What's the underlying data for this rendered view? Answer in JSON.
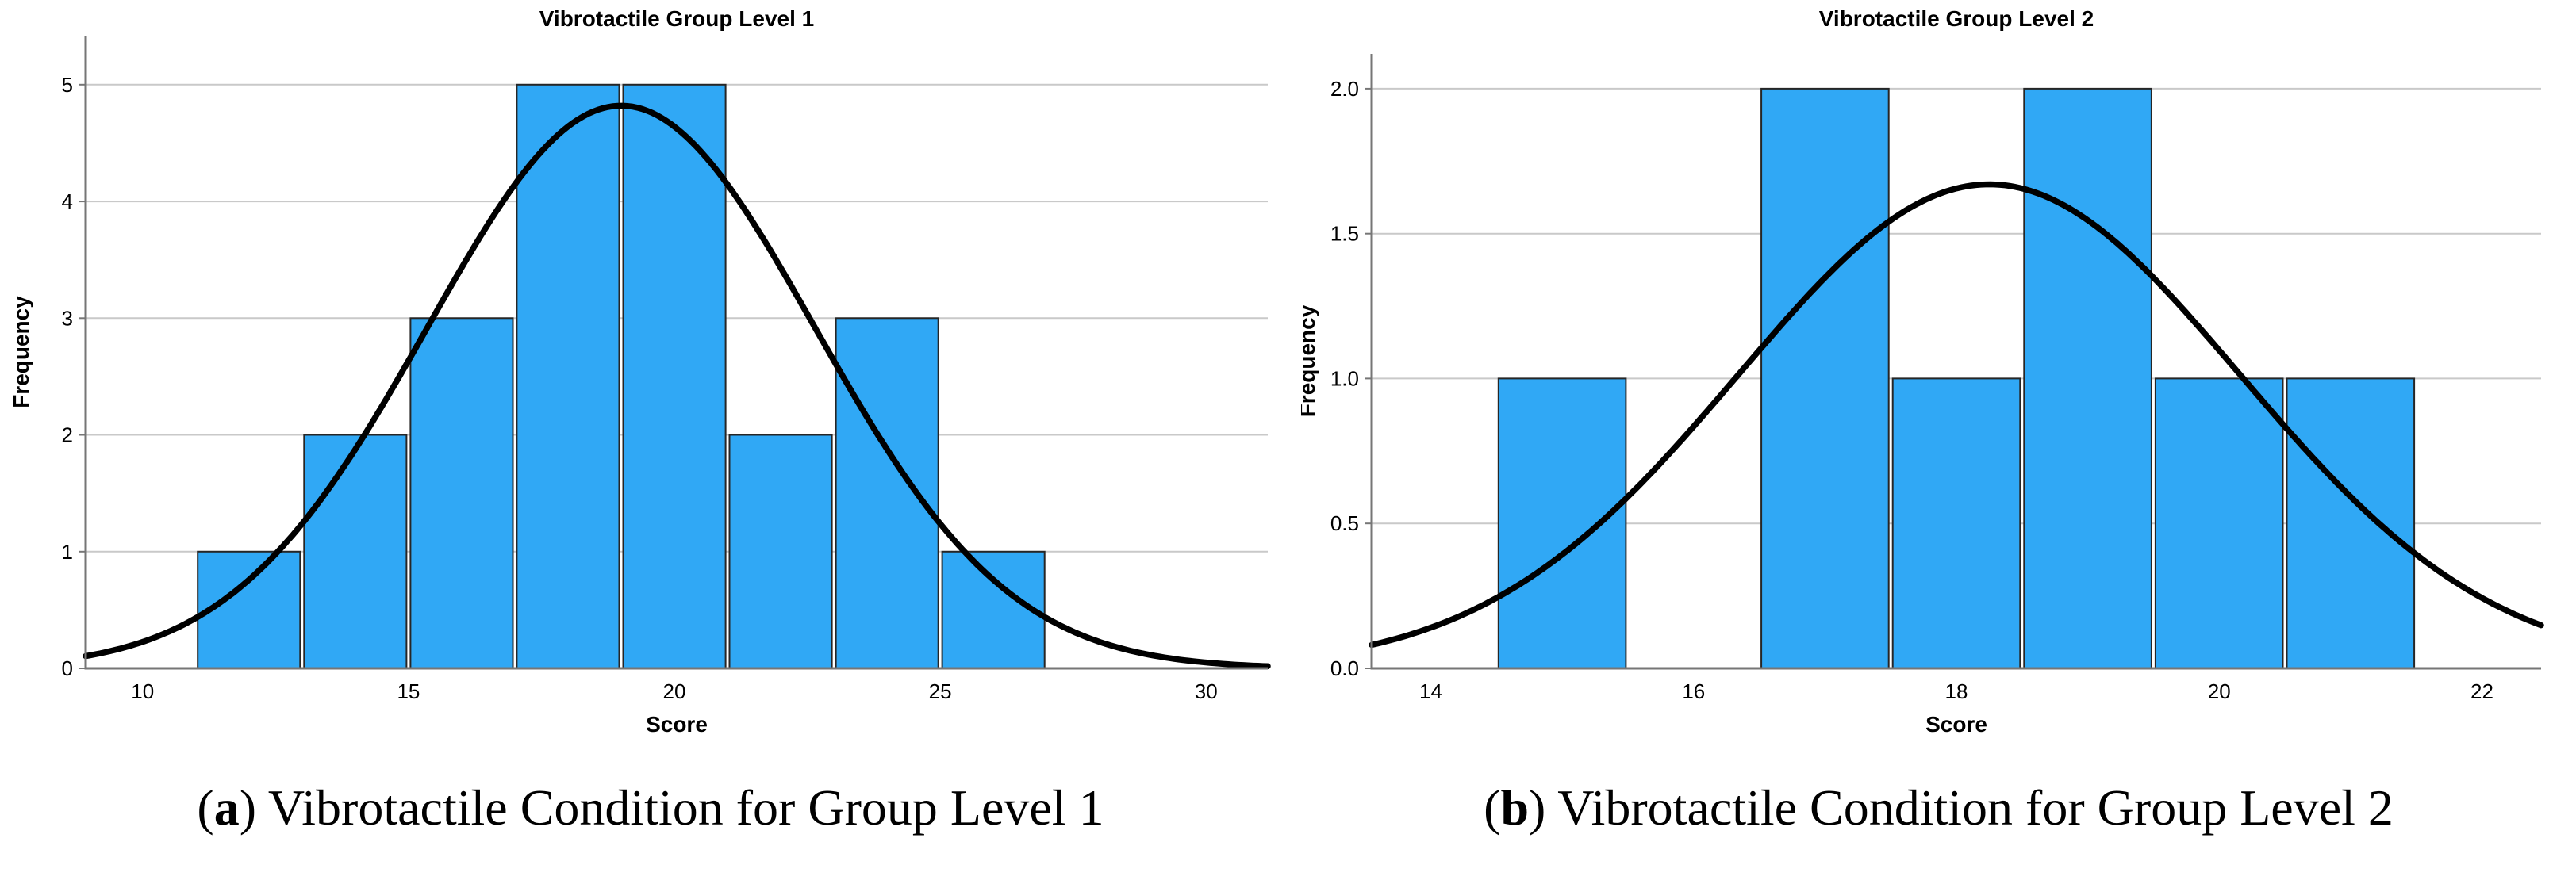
{
  "style": {
    "background": "#ffffff",
    "bar_fill": "#30A8F5",
    "bar_stroke": "#262626",
    "curve_color": "#000000",
    "gridline_color": "#c9c9c9",
    "spine_color": "#767676",
    "text_color": "#000000"
  },
  "chart_data": [
    {
      "type": "bar",
      "subtype": "histogram-with-normal-curve",
      "title": "Vibrotactile Group Level 1",
      "xlabel": "Score",
      "ylabel": "Frequency",
      "xlim": [
        8.93,
        31.16
      ],
      "ylim": [
        0,
        5.42
      ],
      "grid": true,
      "legend": "none",
      "xticks": [
        {
          "value": 10,
          "label": "10"
        },
        {
          "value": 15,
          "label": "15"
        },
        {
          "value": 20,
          "label": "20"
        },
        {
          "value": 25,
          "label": "25"
        },
        {
          "value": 30,
          "label": "30"
        }
      ],
      "yticks": [
        {
          "value": 0,
          "label": "0"
        },
        {
          "value": 1,
          "label": "1"
        },
        {
          "value": 2,
          "label": "2"
        },
        {
          "value": 3,
          "label": "3"
        },
        {
          "value": 4,
          "label": "4"
        },
        {
          "value": 5,
          "label": "5"
        }
      ],
      "bins": [
        {
          "x0": 11,
          "x1": 13,
          "frequency": 1
        },
        {
          "x0": 13,
          "x1": 15,
          "frequency": 2
        },
        {
          "x0": 15,
          "x1": 17,
          "frequency": 3
        },
        {
          "x0": 17,
          "x1": 19,
          "frequency": 5
        },
        {
          "x0": 19,
          "x1": 21,
          "frequency": 5
        },
        {
          "x0": 21,
          "x1": 23,
          "frequency": 2
        },
        {
          "x0": 23,
          "x1": 25,
          "frequency": 3
        },
        {
          "x0": 25,
          "x1": 27,
          "frequency": 1
        }
      ],
      "normal_curve": {
        "mean": 19.0,
        "sd": 3.64,
        "peak": 4.82
      }
    },
    {
      "type": "bar",
      "subtype": "histogram-with-normal-curve",
      "title": "Vibrotactile Group Level 2",
      "xlabel": "Score",
      "ylabel": "Frequency",
      "xlim": [
        13.55,
        22.45
      ],
      "ylim": [
        0,
        2.12
      ],
      "grid": true,
      "legend": "none",
      "xticks": [
        {
          "value": 14,
          "label": "14"
        },
        {
          "value": 16,
          "label": "16"
        },
        {
          "value": 18,
          "label": "18"
        },
        {
          "value": 20,
          "label": "20"
        },
        {
          "value": 22,
          "label": "22"
        }
      ],
      "yticks": [
        {
          "value": 0.0,
          "label": "0.0"
        },
        {
          "value": 0.5,
          "label": "0.5"
        },
        {
          "value": 1.0,
          "label": "1.0"
        },
        {
          "value": 1.5,
          "label": "1.5"
        },
        {
          "value": 2.0,
          "label": "2.0"
        }
      ],
      "bins": [
        {
          "x0": 14.5,
          "x1": 15.5,
          "frequency": 1
        },
        {
          "x0": 16.5,
          "x1": 17.5,
          "frequency": 2
        },
        {
          "x0": 17.5,
          "x1": 18.5,
          "frequency": 1
        },
        {
          "x0": 18.5,
          "x1": 19.5,
          "frequency": 2
        },
        {
          "x0": 19.5,
          "x1": 20.5,
          "frequency": 1
        },
        {
          "x0": 20.5,
          "x1": 21.5,
          "frequency": 1
        }
      ],
      "normal_curve": {
        "mean": 18.25,
        "sd": 1.91,
        "peak": 1.67
      }
    }
  ],
  "captions": [
    {
      "parts": [
        {
          "text": "(",
          "bold": false
        },
        {
          "text": "a",
          "bold": true
        },
        {
          "text": ") Vibrotactile Condition for Group Level 1",
          "bold": false
        }
      ]
    },
    {
      "parts": [
        {
          "text": "(",
          "bold": false
        },
        {
          "text": "b",
          "bold": true
        },
        {
          "text": ") Vibrotactile Condition for Group Level 2",
          "bold": false
        }
      ]
    }
  ]
}
